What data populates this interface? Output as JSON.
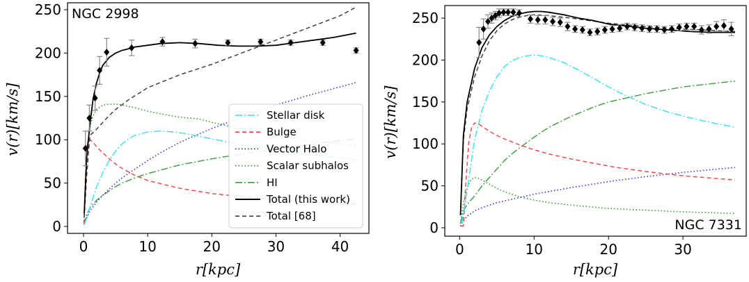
{
  "colors": {
    "stellar_disk": "#33e0f0",
    "bulge": "#f04040",
    "vector_halo": "#3030e0",
    "scalar_subhalos": "#2a9a2a",
    "hi": "#3a9a3a",
    "total_this_work": "#000000",
    "total_ref": "#404040",
    "data_points": "#000000",
    "error_bars": "#888888"
  },
  "legend": {
    "entries": [
      {
        "label": "Stellar disk",
        "series": "stellar_disk",
        "dash": "10 3 2 3"
      },
      {
        "label": "Bulge",
        "series": "bulge",
        "dash": "6 4"
      },
      {
        "label": "Vector Halo",
        "series": "vector_halo",
        "dash": "1.5 3"
      },
      {
        "label": "Scalar subhalos",
        "series": "scalar_subhalos",
        "dash": "1.5 3"
      },
      {
        "label": "HI",
        "series": "hi",
        "dash": "10 3 2 3"
      },
      {
        "label": "Total (this work)",
        "series": "total_this_work",
        "dash": ""
      },
      {
        "label": "Total [68]",
        "series": "total_ref",
        "dash": "6 4"
      }
    ]
  },
  "chart_data": [
    {
      "type": "line",
      "title": "NGC 2998",
      "xlabel": "r[kpc]",
      "ylabel": "v(r)[km/s]",
      "xlim": [
        -2.5,
        44.5
      ],
      "ylim": [
        -8,
        258
      ],
      "xticks": [
        0,
        10,
        20,
        30,
        40
      ],
      "yticks": [
        0,
        50,
        100,
        150,
        200,
        250
      ],
      "legend_position": "bottom-right",
      "grid": false,
      "observations": {
        "x": [
          0.3,
          0.9,
          1.8,
          2.5,
          3.6,
          7.5,
          12.3,
          17.4,
          22.5,
          27.6,
          32.3,
          37.3,
          42.5
        ],
        "y": [
          90,
          125,
          148,
          180,
          201,
          206,
          213,
          211,
          212,
          213,
          212,
          212,
          203
        ],
        "err": [
          20,
          15,
          14,
          16,
          16,
          9,
          5,
          5,
          3,
          3,
          3,
          3,
          3
        ]
      },
      "series": [
        {
          "name": "Total (this work)",
          "key": "total_this_work",
          "x": [
            0.1,
            0.5,
            1,
            1.5,
            2,
            2.5,
            3,
            4,
            5,
            6,
            7,
            8,
            10,
            12,
            15,
            18,
            21,
            24,
            27,
            30,
            33,
            36,
            39,
            42.5
          ],
          "y": [
            15,
            80,
            118,
            148,
            165,
            177,
            186,
            195,
            200,
            203,
            205,
            207,
            209,
            211,
            212,
            211,
            209,
            208,
            208,
            209,
            212,
            215,
            218,
            223
          ]
        },
        {
          "name": "Total [68]",
          "key": "total_ref",
          "x": [
            0.1,
            0.5,
            1,
            2,
            3,
            4,
            5,
            7,
            10,
            15,
            20,
            25,
            30,
            35,
            40,
            42.5
          ],
          "y": [
            10,
            60,
            105,
            112,
            120,
            128,
            135,
            146,
            160,
            175,
            187,
            201,
            215,
            229,
            243,
            253
          ]
        },
        {
          "name": "Stellar disk",
          "key": "stellar_disk",
          "x": [
            0.1,
            1,
            2,
            3,
            4,
            5,
            6,
            7,
            8,
            10,
            12,
            14,
            16,
            18,
            20,
            25,
            30,
            35,
            40,
            42.5
          ],
          "y": [
            2,
            22,
            45,
            62,
            76,
            87,
            95,
            101,
            105,
            109,
            110,
            109,
            107,
            104,
            101,
            94,
            88,
            83,
            79,
            77
          ]
        },
        {
          "name": "Bulge",
          "key": "bulge",
          "x": [
            0.05,
            0.3,
            0.6,
            1,
            1.5,
            2,
            3,
            4,
            5,
            6,
            8,
            10,
            15,
            20,
            25,
            30,
            35,
            40,
            42.5
          ],
          "y": [
            3,
            60,
            95,
            100,
            97,
            92,
            85,
            78,
            72,
            67,
            59,
            53,
            44,
            38,
            34,
            31,
            28,
            27,
            26
          ]
        },
        {
          "name": "Vector Halo",
          "key": "vector_halo",
          "x": [
            0.1,
            0.5,
            1,
            2,
            3,
            4,
            5,
            6,
            8,
            10,
            12,
            15,
            20,
            25,
            30,
            35,
            40,
            42.5
          ],
          "y": [
            3,
            10,
            18,
            28,
            36,
            43,
            50,
            56,
            66,
            76,
            85,
            97,
            113,
            127,
            140,
            151,
            161,
            166
          ]
        },
        {
          "name": "Scalar subhalos",
          "key": "scalar_subhalos",
          "x": [
            0.05,
            0.3,
            0.6,
            1,
            1.5,
            2,
            3,
            4,
            5,
            6,
            8,
            10,
            12,
            15,
            18,
            20,
            25,
            30,
            35,
            40,
            42.5
          ],
          "y": [
            3,
            60,
            95,
            115,
            128,
            135,
            140,
            141,
            141,
            140,
            137,
            133,
            130,
            126,
            124,
            120,
            112,
            105,
            99,
            95,
            93
          ]
        },
        {
          "name": "HI",
          "key": "hi",
          "x": [
            0.05,
            0.3,
            1,
            2,
            3,
            4,
            5,
            6,
            8,
            10,
            12,
            15,
            20,
            25,
            30,
            35,
            40,
            42.5
          ],
          "y": [
            2,
            10,
            22,
            30,
            36,
            41,
            46,
            50,
            56,
            61,
            65,
            71,
            78,
            84,
            89,
            94,
            99,
            101
          ]
        }
      ]
    },
    {
      "type": "line",
      "title": "NGC 7331",
      "xlabel": "r[kpc]",
      "ylabel": "v(r)[km/s]",
      "xlim": [
        -2,
        38.5
      ],
      "ylim": [
        -10,
        265
      ],
      "xticks": [
        0,
        10,
        20,
        30
      ],
      "yticks": [
        0,
        50,
        100,
        150,
        200,
        250
      ],
      "grid": false,
      "observations": {
        "x": [
          2.6,
          3.2,
          3.8,
          4.3,
          4.8,
          5.3,
          5.9,
          6.5,
          7.2,
          8.0,
          9.5,
          10.5,
          11.5,
          12.5,
          13.5,
          14.5,
          15.5,
          16.5,
          17.5,
          18.5,
          19.5,
          20.5,
          21.5,
          22.5,
          23.5,
          24.5,
          25.5,
          26.5,
          27.5,
          28.5,
          29.5,
          30.5,
          31.5,
          32.5,
          33.5,
          34.5,
          35.5,
          36.5
        ],
        "y": [
          221,
          237,
          246,
          250,
          253,
          256,
          257,
          257,
          257,
          256,
          249,
          248,
          248,
          246,
          245,
          240,
          237,
          236,
          233,
          234,
          236,
          237,
          238,
          240,
          239,
          238,
          237,
          237,
          236,
          237,
          239,
          240,
          240,
          236,
          237,
          240,
          241,
          237
        ],
        "err": [
          18,
          12,
          8,
          6,
          5,
          5,
          4,
          4,
          4,
          4,
          5,
          5,
          5,
          5,
          5,
          5,
          4,
          4,
          4,
          4,
          4,
          4,
          4,
          4,
          4,
          4,
          4,
          4,
          4,
          4,
          4,
          4,
          4,
          5,
          5,
          6,
          7,
          8
        ]
      },
      "series": [
        {
          "name": "Total (this work)",
          "key": "total_this_work",
          "x": [
            0.1,
            0.5,
            1,
            2,
            3,
            4,
            5,
            6,
            7,
            8,
            9,
            10,
            11,
            12,
            14,
            16,
            18,
            20,
            22,
            25,
            28,
            31,
            34,
            37
          ],
          "y": [
            15,
            110,
            150,
            190,
            215,
            230,
            240,
            247,
            252,
            255,
            257,
            258,
            258,
            257,
            254,
            250,
            247,
            243,
            241,
            238,
            236,
            234,
            233,
            233
          ]
        },
        {
          "name": "Total [68]",
          "key": "total_ref",
          "x": [
            0.1,
            0.5,
            1,
            2,
            3,
            4,
            5,
            6,
            7,
            8,
            9,
            10,
            12,
            15,
            20,
            25,
            30,
            37
          ],
          "y": [
            15,
            105,
            142,
            180,
            205,
            223,
            235,
            243,
            248,
            251,
            253,
            254,
            253,
            250,
            244,
            240,
            237,
            234
          ]
        },
        {
          "name": "Stellar disk",
          "key": "stellar_disk",
          "x": [
            0.3,
            1,
            2,
            3,
            4,
            5,
            6,
            7,
            8,
            9,
            10,
            11,
            12,
            14,
            16,
            18,
            20,
            22,
            25,
            28,
            31,
            34,
            37
          ],
          "y": [
            5,
            45,
            105,
            140,
            163,
            180,
            192,
            199,
            203,
            205,
            206,
            205,
            203,
            197,
            188,
            178,
            168,
            159,
            147,
            138,
            131,
            125,
            120
          ]
        },
        {
          "name": "Bulge",
          "key": "bulge",
          "x": [
            0.2,
            0.5,
            0.8,
            1.2,
            1.6,
            2,
            2.5,
            3,
            4,
            5,
            6,
            8,
            10,
            12,
            15,
            18,
            21,
            25,
            30,
            37
          ],
          "y": [
            2,
            2,
            50,
            100,
            120,
            125,
            124,
            121,
            115,
            110,
            106,
            99,
            93,
            88,
            82,
            77,
            72,
            67,
            62,
            57
          ]
        },
        {
          "name": "Vector Halo",
          "key": "vector_halo",
          "x": [
            0.1,
            0.5,
            1,
            2,
            3,
            5,
            7,
            10,
            15,
            20,
            25,
            30,
            37
          ],
          "y": [
            2,
            8,
            14,
            20,
            24,
            30,
            34,
            40,
            48,
            55,
            61,
            66,
            72
          ]
        },
        {
          "name": "Scalar subhalos",
          "key": "scalar_subhalos",
          "x": [
            0.1,
            0.5,
            1,
            1.5,
            2,
            2.5,
            3,
            4,
            5,
            6,
            7,
            8,
            10,
            12,
            15,
            20,
            25,
            30,
            37
          ],
          "y": [
            5,
            30,
            48,
            57,
            60,
            59,
            57,
            52,
            47,
            43,
            40,
            37,
            33,
            30,
            27,
            23,
            21,
            19,
            17
          ]
        },
        {
          "name": "HI",
          "key": "hi",
          "x": [
            0.1,
            0.5,
            1,
            2,
            3,
            4,
            5,
            6,
            7,
            8,
            10,
            12,
            15,
            18,
            20,
            25,
            30,
            37
          ],
          "y": [
            5,
            20,
            28,
            38,
            50,
            60,
            70,
            80,
            88,
            95,
            108,
            120,
            133,
            144,
            150,
            160,
            168,
            175
          ]
        }
      ]
    }
  ]
}
